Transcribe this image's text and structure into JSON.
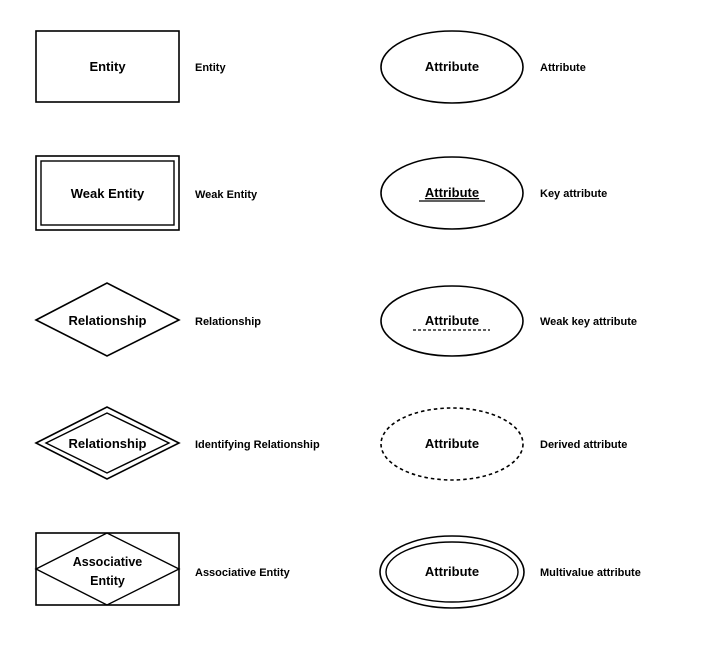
{
  "legend": {
    "entity": {
      "shape_label": "Entity",
      "description": "Entity"
    },
    "weak_entity": {
      "shape_label": "Weak Entity",
      "description": "Weak Entity"
    },
    "relationship": {
      "shape_label": "Relationship",
      "description": "Relationship"
    },
    "identifying_relationship": {
      "shape_label": "Relationship",
      "description": "Identifying Relationship"
    },
    "associative_entity": {
      "shape_label_line1": "Associative",
      "shape_label_line2": "Entity",
      "description": "Associative Entity"
    },
    "attribute": {
      "shape_label": "Attribute",
      "description": "Attribute"
    },
    "key_attribute": {
      "shape_label": "Attribute",
      "description": "Key attribute"
    },
    "weak_key_attribute": {
      "shape_label": "Attribute",
      "description": "Weak key attribute"
    },
    "derived_attribute": {
      "shape_label": "Attribute",
      "description": "Derived attribute"
    },
    "multivalue_attribute": {
      "shape_label": "Attribute",
      "description": "Multivalue attribute"
    }
  }
}
